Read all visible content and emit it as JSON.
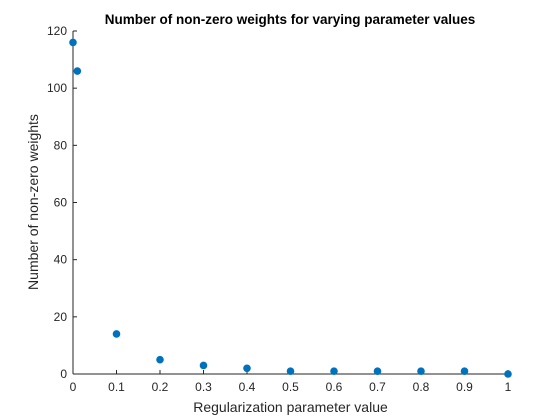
{
  "chart_data": {
    "type": "scatter",
    "title": "Number of non-zero weights for varying parameter values",
    "xlabel": "Regularization parameter value",
    "ylabel": "Number of non-zero weights",
    "xlim": [
      0,
      1
    ],
    "ylim": [
      0,
      120
    ],
    "xticks": [
      0,
      0.1,
      0.2,
      0.3,
      0.4,
      0.5,
      0.6,
      0.7,
      0.8,
      0.9,
      1
    ],
    "xtick_labels": [
      "0",
      "0.1",
      "0.2",
      "0.3",
      "0.4",
      "0.5",
      "0.6",
      "0.7",
      "0.8",
      "0.9",
      "1"
    ],
    "yticks": [
      0,
      20,
      40,
      60,
      80,
      100,
      120
    ],
    "ytick_labels": [
      "0",
      "20",
      "40",
      "60",
      "80",
      "100",
      "120"
    ],
    "grid": false,
    "marker_color": "#0072BD",
    "points": [
      {
        "x": 0,
        "y": 116
      },
      {
        "x": 0.01,
        "y": 106
      },
      {
        "x": 0.1,
        "y": 14
      },
      {
        "x": 0.2,
        "y": 5
      },
      {
        "x": 0.3,
        "y": 3
      },
      {
        "x": 0.4,
        "y": 2
      },
      {
        "x": 0.5,
        "y": 1
      },
      {
        "x": 0.6,
        "y": 1
      },
      {
        "x": 0.7,
        "y": 1
      },
      {
        "x": 0.8,
        "y": 1
      },
      {
        "x": 0.9,
        "y": 1
      },
      {
        "x": 1,
        "y": 0
      }
    ]
  }
}
